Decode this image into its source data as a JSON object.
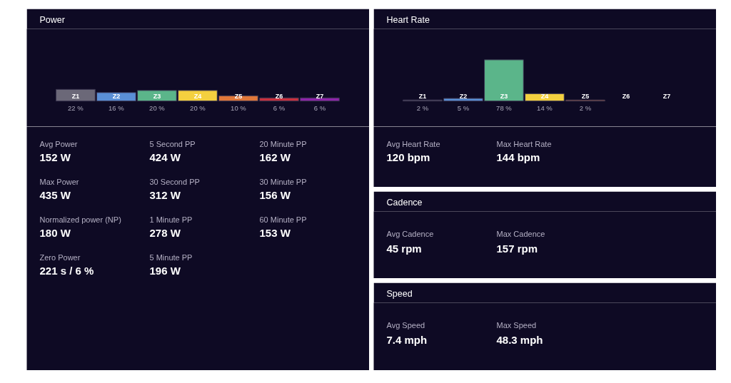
{
  "chart_data": [
    {
      "type": "bar",
      "title": "Power",
      "categories": [
        "Z1",
        "Z2",
        "Z3",
        "Z4",
        "Z5",
        "Z6",
        "Z7"
      ],
      "values": [
        22,
        16,
        20,
        20,
        10,
        6,
        6
      ],
      "colors": [
        "#6b6878",
        "#5a8fd6",
        "#5bb58a",
        "#f4d03f",
        "#e0773a",
        "#c9303e",
        "#8e24aa"
      ],
      "value_labels": [
        "22 %",
        "16 %",
        "20 %",
        "20 %",
        "10 %",
        "6 %",
        "6 %"
      ],
      "annotations": [
        "Avg Power",
        "152 W",
        "Max Power",
        "435 W",
        "Normalized power (NP)",
        "180 W",
        "Zero Power",
        "221 s / 6 %",
        "5 Second PP",
        "424 W",
        "30 Second PP",
        "312 W",
        "1 Minute PP",
        "278 W",
        "5 Minute PP",
        "196 W",
        "20 Minute PP",
        "162 W",
        "30 Minute PP",
        "156 W",
        "60 Minute PP",
        "153 W"
      ]
    },
    {
      "type": "bar",
      "title": "Heart Rate",
      "categories": [
        "Z1",
        "Z2",
        "Z3",
        "Z4",
        "Z5",
        "Z6",
        "Z7"
      ],
      "values": [
        2,
        5,
        78,
        14,
        2,
        null,
        null
      ],
      "colors": [
        "#6b6878",
        "#5a8fd6",
        "#5bb58a",
        "#f4d03f",
        "#e0773a",
        "#c9303e",
        "#8e24aa"
      ],
      "value_labels": [
        "2 %",
        "5 %",
        "78 %",
        "14 %",
        "2 %",
        null,
        null
      ],
      "annotations": [
        "Avg Heart Rate",
        "120 bpm",
        "Max Heart Rate",
        "144 bpm"
      ]
    },
    {
      "type": "other",
      "title": "Cadence",
      "annotations": [
        "Avg Cadence",
        "45 rpm",
        "Max Cadence",
        "157 rpm"
      ]
    },
    {
      "type": "other",
      "title": "Speed",
      "annotations": [
        "Avg Speed",
        "7.4 mph",
        "Max Speed",
        "48.3 mph"
      ]
    }
  ]
}
